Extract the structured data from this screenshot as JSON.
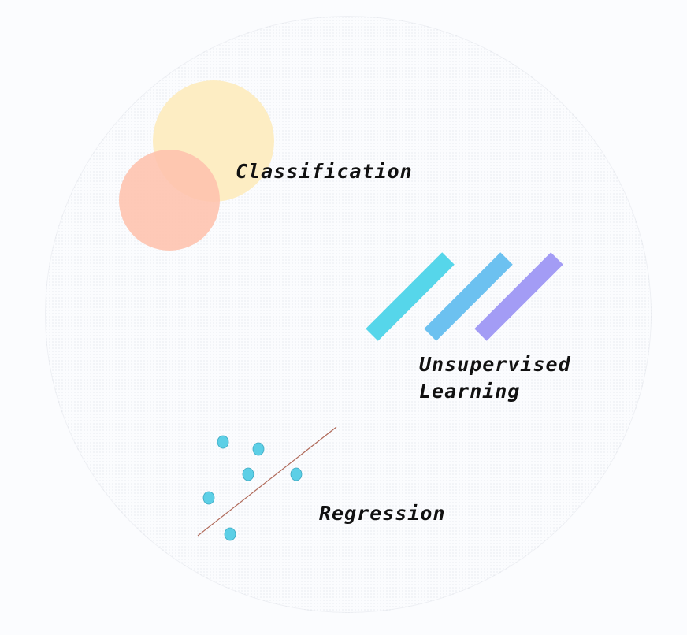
{
  "labels": {
    "classification": "Classification",
    "unsupervised_line1": "Unsupervised",
    "unsupervised_line2": "Learning",
    "regression": "Regression"
  },
  "colors": {
    "background": "#fbfcfe",
    "classification_circle_a": "#fdedc3",
    "classification_circle_b": "#fec2ad",
    "unsupervised_bar_1": "#56d6ea",
    "unsupervised_bar_2": "#6cc1f0",
    "unsupervised_bar_3": "#a39cf5",
    "regression_points": "#5ccfe6",
    "regression_line": "#b06a5a"
  },
  "icons": {
    "classification": "overlapping-circles-icon",
    "unsupervised": "diagonal-bars-icon",
    "regression": "scatter-with-fit-line-icon"
  }
}
